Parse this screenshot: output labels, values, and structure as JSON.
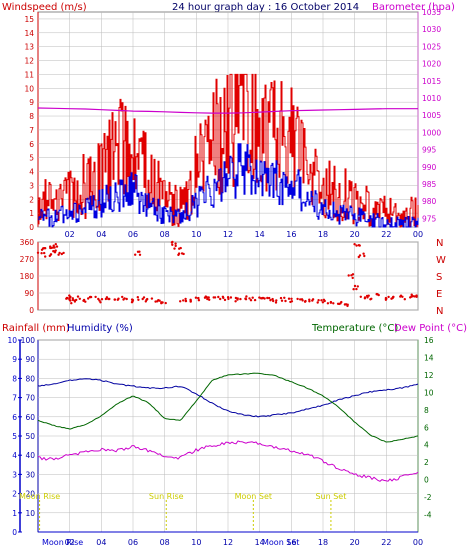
{
  "header": {
    "wind_title": "Windspeed (m/s)",
    "graph_title": "24 hour graph day : 16 October 2014",
    "baro_title": "Barometer (hpa)"
  },
  "bottom_header": {
    "rain_title": "Rainfall (mm)",
    "humidity_title": "Humidity (%)",
    "temp_title": "Temperature (°C)",
    "dew_title": "Dew Point (°C)"
  },
  "colors": {
    "wind_gust": "#e00000",
    "wind_avg": "#0000e0",
    "barometer": "#cc00cc",
    "direction": "#e00000",
    "humidity": "#0000a0",
    "temperature": "#006600",
    "dew_point": "#cc00cc",
    "rainfall_axis": "#0000cc",
    "sun_moon": "#cccc00",
    "grid": "#bbbbbb"
  },
  "chart_data": [
    {
      "type": "line",
      "id": "wind-barometer",
      "x_ticks": [
        "02",
        "04",
        "06",
        "08",
        "10",
        "12",
        "14",
        "16",
        "18",
        "20",
        "22",
        "00"
      ],
      "y_left_ticks": [
        "0",
        "1",
        "2",
        "3",
        "4",
        "5",
        "6",
        "7",
        "8",
        "9",
        "10",
        "11",
        "12",
        "13",
        "14",
        "15"
      ],
      "y_right_ticks": [
        "975",
        "980",
        "985",
        "990",
        "995",
        "1000",
        "1005",
        "1010",
        "1015",
        "1020",
        "1025",
        "1030",
        "1035"
      ],
      "ylim_left": [
        0,
        15.5
      ],
      "ylim_right": [
        972.5,
        1035
      ],
      "x_hours": [
        0,
        1,
        2,
        3,
        4,
        5,
        6,
        7,
        8,
        9,
        10,
        11,
        12,
        13,
        14,
        15,
        16,
        17,
        18,
        19,
        20,
        21,
        22,
        23,
        24
      ],
      "series": [
        {
          "key": "gust",
          "values": [
            2,
            1.5,
            2.5,
            3,
            4,
            5.5,
            6,
            3.5,
            2,
            1.5,
            4,
            6,
            8,
            10.5,
            8,
            7,
            7,
            5,
            3,
            2.5,
            2,
            1.5,
            1,
            1,
            1
          ]
        },
        {
          "key": "avg",
          "values": [
            0.8,
            0.6,
            1,
            1.3,
            1.8,
            2.3,
            2.6,
            1.5,
            0.9,
            0.6,
            1.8,
            2.6,
            3.5,
            4.5,
            3.6,
            3.2,
            3,
            2.2,
            1.3,
            1,
            0.8,
            0.6,
            0.3,
            0.3,
            0.3
          ]
        },
        {
          "key": "barometer",
          "values": [
            1007.1,
            1007,
            1006.9,
            1006.8,
            1006.6,
            1006.4,
            1006.2,
            1006.1,
            1006,
            1005.8,
            1005.7,
            1005.6,
            1005.6,
            1005.7,
            1005.9,
            1006.1,
            1006.3,
            1006.4,
            1006.5,
            1006.6,
            1006.7,
            1006.8,
            1006.9,
            1006.9,
            1006.9
          ]
        }
      ]
    },
    {
      "type": "scatter",
      "id": "wind-direction",
      "x_ticks": [
        "02",
        "04",
        "06",
        "08",
        "10",
        "12",
        "14",
        "16",
        "18",
        "20",
        "22",
        "00"
      ],
      "y_left_ticks": [
        "0",
        "90",
        "180",
        "270",
        "360"
      ],
      "compass_labels": [
        "N",
        "W",
        "S",
        "E",
        "N"
      ],
      "ylim": [
        0,
        360
      ],
      "points": [
        [
          0.2,
          300
        ],
        [
          0.4,
          320
        ],
        [
          0.6,
          290
        ],
        [
          0.8,
          330
        ],
        [
          1,
          310
        ],
        [
          1.2,
          340
        ],
        [
          1.4,
          300
        ],
        [
          1.8,
          60
        ],
        [
          2,
          70
        ],
        [
          2.2,
          45
        ],
        [
          2.5,
          60
        ],
        [
          3,
          55
        ],
        [
          3.5,
          62
        ],
        [
          4,
          50
        ],
        [
          4.5,
          58
        ],
        [
          5,
          55
        ],
        [
          5.5,
          65
        ],
        [
          6,
          50
        ],
        [
          6.3,
          300
        ],
        [
          6.5,
          60
        ],
        [
          7,
          55
        ],
        [
          7.5,
          48
        ],
        [
          8,
          40
        ],
        [
          8.5,
          355
        ],
        [
          8.8,
          330
        ],
        [
          9,
          300
        ],
        [
          9.2,
          50
        ],
        [
          9.5,
          55
        ],
        [
          10,
          60
        ],
        [
          10.5,
          62
        ],
        [
          11,
          58
        ],
        [
          11.5,
          65
        ],
        [
          12,
          60
        ],
        [
          12.5,
          55
        ],
        [
          13,
          62
        ],
        [
          13.5,
          58
        ],
        [
          14,
          60
        ],
        [
          14.5,
          55
        ],
        [
          15,
          50
        ],
        [
          15.5,
          58
        ],
        [
          16,
          52
        ],
        [
          16.5,
          55
        ],
        [
          17,
          48
        ],
        [
          17.5,
          50
        ],
        [
          18,
          45
        ],
        [
          18.5,
          40
        ],
        [
          19,
          35
        ],
        [
          19.5,
          30
        ],
        [
          19.8,
          180
        ],
        [
          20,
          120
        ],
        [
          20.2,
          340
        ],
        [
          20.4,
          290
        ],
        [
          20.6,
          70
        ],
        [
          21,
          65
        ],
        [
          21.5,
          75
        ],
        [
          22,
          60
        ],
        [
          22.5,
          70
        ],
        [
          23,
          65
        ],
        [
          23.5,
          75
        ],
        [
          24,
          68
        ]
      ]
    },
    {
      "type": "line",
      "id": "rain-humidity-temp",
      "x_ticks": [
        "02",
        "04",
        "06",
        "08",
        "10",
        "12",
        "14",
        "16",
        "18",
        "20",
        "22",
        "00"
      ],
      "y_rain_ticks": [
        "0",
        "1",
        "2",
        "3",
        "4",
        "5",
        "6",
        "7",
        "8",
        "9",
        "10"
      ],
      "y_humidity_ticks": [
        "10",
        "20",
        "30",
        "40",
        "50",
        "60",
        "70",
        "80",
        "90",
        "100"
      ],
      "y_temp_ticks": [
        "-4",
        "-2",
        "0",
        "2",
        "4",
        "6",
        "8",
        "10",
        "12",
        "14",
        "16"
      ],
      "ylim_humidity": [
        0,
        100
      ],
      "ylim_temp": [
        -6,
        16
      ],
      "x_hours": [
        0,
        1,
        2,
        3,
        4,
        5,
        6,
        7,
        8,
        9,
        10,
        11,
        12,
        13,
        14,
        15,
        16,
        17,
        18,
        19,
        20,
        21,
        22,
        23,
        24
      ],
      "series": [
        {
          "key": "humidity",
          "values": [
            76,
            77,
            79,
            80,
            79,
            77,
            76,
            75,
            75,
            76,
            72,
            67,
            63,
            61,
            60,
            61,
            62,
            64,
            66,
            69,
            71,
            73,
            74,
            75,
            77
          ]
        },
        {
          "key": "temperature",
          "values": [
            6.8,
            6.2,
            5.8,
            6.3,
            7.3,
            8.7,
            9.6,
            8.8,
            7,
            6.8,
            9,
            11.4,
            12,
            12.1,
            12.2,
            11.9,
            11.2,
            10.5,
            9.6,
            8.3,
            6.6,
            5.1,
            4.3,
            4.6,
            5
          ]
        },
        {
          "key": "dew_point",
          "values": [
            2.5,
            2.3,
            2.8,
            3.2,
            3.5,
            3.3,
            3.8,
            3.3,
            2.6,
            2.5,
            3.4,
            3.9,
            4.2,
            4.3,
            4.1,
            3.7,
            3.3,
            2.9,
            2.1,
            1.3,
            0.6,
            0.2,
            -0.2,
            0.3,
            0.9
          ]
        }
      ],
      "rainfall": [
        0,
        0,
        0,
        0,
        0,
        0,
        0,
        0,
        0,
        0,
        0,
        0,
        0,
        0,
        0,
        0,
        0,
        0,
        0,
        0,
        0,
        0,
        0,
        0,
        0
      ]
    }
  ],
  "events": {
    "moon_rise_label": "Moon Rise",
    "sun_rise_label": "Sun Rise",
    "moon_set_label": "Moon Set",
    "sun_set_label": "Sun Set",
    "moon_rise_hour": 0.1,
    "sun_rise_hour": 8.1,
    "moon_set_hour": 13.6,
    "sun_set_hour": 18.5
  },
  "bottom_axis": {
    "moon_rise_text": "Moon Rise",
    "moon_set_text": "Moon Set",
    "ticks": [
      "02",
      "04",
      "06",
      "08",
      "10",
      "12",
      "14",
      "16",
      "18",
      "20",
      "22",
      "00"
    ]
  }
}
